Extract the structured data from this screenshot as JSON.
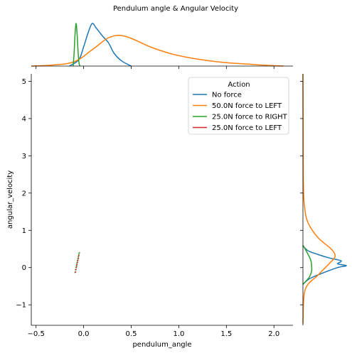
{
  "chart_data": {
    "type": "scatter",
    "kind": "joint-plot with marginal density (KDE) curves",
    "title": "Pendulum angle & Angular Velocity",
    "xlabel": "pendulum_angle",
    "ylabel": "angular_velocity",
    "xlim": [
      -0.55,
      2.2
    ],
    "ylim": [
      -1.55,
      5.2
    ],
    "xticks": [
      -0.5,
      0.0,
      0.5,
      1.0,
      1.5,
      2.0
    ],
    "xtick_labels": [
      "−0.5",
      "0.0",
      "0.5",
      "1.0",
      "1.5",
      "2.0"
    ],
    "yticks": [
      -1,
      0,
      1,
      2,
      3,
      4,
      5
    ],
    "ytick_labels": [
      "−1",
      "0",
      "1",
      "2",
      "3",
      "4",
      "5"
    ],
    "grid": false,
    "legend": {
      "title": "Action",
      "placement": "top-right",
      "entries": [
        "No force",
        "50.0N force to LEFT",
        "25.0N force to RIGHT",
        "25.0N force to LEFT"
      ]
    },
    "series": [
      {
        "name": "No force",
        "color": "#1f77b4",
        "points": [],
        "marginal_x": [
          [
            -0.15,
            0
          ],
          [
            -0.05,
            0.15
          ],
          [
            0.0,
            0.45
          ],
          [
            0.05,
            0.8
          ],
          [
            0.09,
            1.0
          ],
          [
            0.13,
            0.9
          ],
          [
            0.2,
            0.7
          ],
          [
            0.26,
            0.55
          ],
          [
            0.32,
            0.3
          ],
          [
            0.4,
            0.12
          ],
          [
            0.5,
            0
          ]
        ],
        "marginal_y": [
          [
            -0.45,
            0
          ],
          [
            -0.3,
            0.15
          ],
          [
            -0.15,
            0.45
          ],
          [
            0.0,
            0.8
          ],
          [
            0.05,
            1.0
          ],
          [
            0.1,
            0.8
          ],
          [
            0.18,
            0.88
          ],
          [
            0.26,
            0.6
          ],
          [
            0.35,
            0.35
          ],
          [
            0.45,
            0.12
          ],
          [
            0.58,
            0
          ]
        ]
      },
      {
        "name": "50.0N force to LEFT",
        "color": "#ff7f0e",
        "points": [],
        "marginal_x": [
          [
            -0.55,
            0
          ],
          [
            -0.35,
            0.02
          ],
          [
            -0.1,
            0.1
          ],
          [
            0.1,
            0.4
          ],
          [
            0.25,
            0.65
          ],
          [
            0.37,
            0.72
          ],
          [
            0.5,
            0.65
          ],
          [
            0.7,
            0.45
          ],
          [
            0.9,
            0.3
          ],
          [
            1.1,
            0.2
          ],
          [
            1.3,
            0.13
          ],
          [
            1.5,
            0.08
          ],
          [
            1.7,
            0.05
          ],
          [
            1.9,
            0.02
          ],
          [
            2.1,
            0
          ]
        ],
        "marginal_y": [
          [
            -1.5,
            0
          ],
          [
            -0.6,
            0.05
          ],
          [
            -0.2,
            0.35
          ],
          [
            0.1,
            0.6
          ],
          [
            0.3,
            0.74
          ],
          [
            0.5,
            0.65
          ],
          [
            0.8,
            0.35
          ],
          [
            1.2,
            0.12
          ],
          [
            1.6,
            0.04
          ],
          [
            2.2,
            0.01
          ],
          [
            3.5,
            0.005
          ],
          [
            5.2,
            0
          ]
        ]
      },
      {
        "name": "25.0N force to RIGHT",
        "color": "#2ca02c",
        "points": [
          [
            -0.09,
            -0.13
          ],
          [
            -0.085,
            -0.06
          ],
          [
            -0.08,
            0.0
          ],
          [
            -0.075,
            0.06
          ],
          [
            -0.07,
            0.12
          ],
          [
            -0.065,
            0.18
          ],
          [
            -0.06,
            0.24
          ],
          [
            -0.055,
            0.3
          ],
          [
            -0.05,
            0.36
          ],
          [
            -0.045,
            0.4
          ]
        ],
        "marginal_x": [
          [
            -0.11,
            0
          ],
          [
            -0.1,
            0.3
          ],
          [
            -0.09,
            0.75
          ],
          [
            -0.08,
            1.0
          ],
          [
            -0.07,
            0.8
          ],
          [
            -0.06,
            0.4
          ],
          [
            -0.05,
            0.1
          ],
          [
            -0.04,
            0
          ]
        ],
        "marginal_y": [
          [
            -0.45,
            0
          ],
          [
            -0.35,
            0.08
          ],
          [
            -0.25,
            0.15
          ],
          [
            -0.1,
            0.2
          ],
          [
            0.05,
            0.2
          ],
          [
            0.2,
            0.18
          ],
          [
            0.35,
            0.12
          ],
          [
            0.5,
            0.05
          ],
          [
            0.6,
            0
          ]
        ]
      },
      {
        "name": "25.0N force to LEFT",
        "color": "#d62728",
        "points": [
          [
            -0.085,
            -0.12
          ],
          [
            -0.08,
            -0.05
          ],
          [
            -0.075,
            0.02
          ],
          [
            -0.07,
            0.08
          ],
          [
            -0.065,
            0.14
          ],
          [
            -0.06,
            0.2
          ],
          [
            -0.055,
            0.26
          ],
          [
            -0.05,
            0.32
          ]
        ],
        "marginal_x": [],
        "marginal_y": []
      }
    ]
  }
}
